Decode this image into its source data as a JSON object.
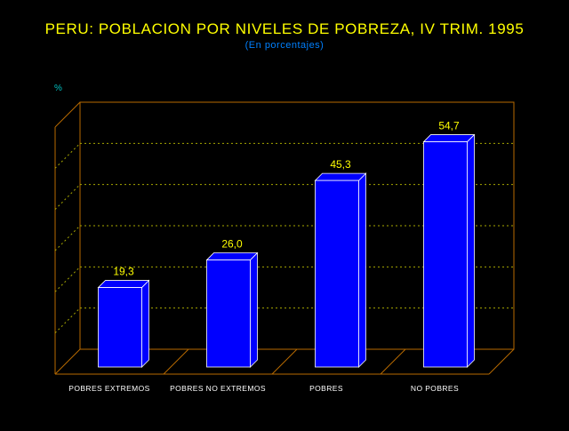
{
  "colors": {
    "background": "#000000",
    "title": "#ffff00",
    "subtitle": "#0080ff",
    "unit": "#00c0c0",
    "frame": "#b86a00",
    "grid": "#a8a800",
    "bar_front": "#0000ff",
    "bar_top": "#ffffff",
    "bar_side": "#0000ff",
    "value_label": "#ffff00",
    "category_label": "#ffffff"
  },
  "chart_data": {
    "type": "bar",
    "title": "PERU: POBLACION POR NIVELES DE POBREZA, IV TRIM. 1995",
    "subtitle": "(En porcentajes)",
    "ylabel": "%",
    "xlabel": "",
    "categories": [
      "POBRES EXTREMOS",
      "POBRES NO EXTREMOS",
      "POBRES",
      "NO POBRES"
    ],
    "values": [
      19.3,
      26.0,
      45.3,
      54.7
    ],
    "value_labels": [
      "19,3",
      "26,0",
      "45,3",
      "54,7"
    ],
    "ylim": [
      0,
      60
    ],
    "grid": true,
    "legend": "none",
    "style": "3d"
  }
}
